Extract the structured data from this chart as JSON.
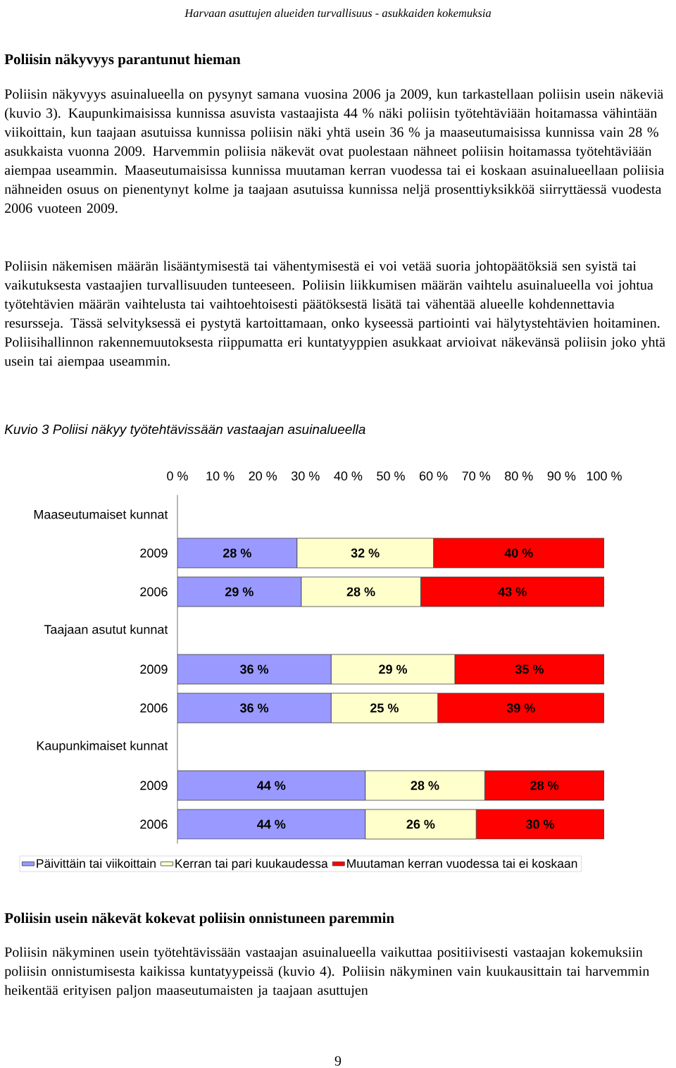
{
  "chart_data": {
    "type": "bar",
    "orientation": "horizontal",
    "stacked": true,
    "title": "Kuvio 3 Poliisi näkyy työtehtävissään vastaajan asuinalueella",
    "annotations": [
      "Harvaan asuttujen alueiden turvallisuus - asukkaiden kokemuksia",
      "Poliisin näkyvyys parantunut hieman",
      "Poliisin näkyvyys asuinalueella on pysynyt samana vuosina 2006 ja 2009, kun tarkastellaan poliisin usein näkeviä (kuvio 3). Kaupunkimaisissa kunnissa asuvista vastaajista 44 % näki poliisin työtehtäviään hoitamassa vähintään viikoittain, kun taajaan asutuissa kunnissa poliisin näki yhtä usein 36 % ja maaseutumaisissa kunnissa vain 28 % asukkaista vuonna 2009. Harvemmin poliisia näkevät ovat puolestaan nähneet poliisin hoitamassa työtehtäviään aiempaa useammin. Maaseutumaisissa kunnissa muutaman kerran vuodessa tai ei koskaan asuinalueellaan poliisia nähneiden osuus on pienentynyt kolme ja taajaan asutuissa kunnissa neljä prosenttiyksikköä siirryttäessä vuodesta 2006 vuoteen 2009.",
      "Poliisin näkemisen määrän lisääntymisestä tai vähentymisestä ei voi vetää suoria johtopäätöksiä sen syistä tai vaikutuksesta vastaajien turvallisuuden tunteeseen. Poliisin liikkumisen määrän vaihtelu asuinalueella voi johtua työtehtävien määrän vaihtelusta tai vaihtoehtoisesti päätöksestä lisätä tai vähentää alueelle kohdennettavia resursseja. Tässä selvityksessä ei pystytä kartoittamaan, onko kyseessä partiointi vai hälytystehtävien hoitaminen. Poliisihallinnon rakennemuutoksesta riippumatta eri kuntatyyppien asukkaat arvioivat näkevänsä poliisin joko yhtä usein tai aiempaa useammin.",
      "Poliisin usein näkevät kokevat poliisin onnistuneen paremmin",
      "Poliisin näkyminen usein työtehtävissään vastaajan asuinalueella vaikuttaa positiivisesti vastaajan kokemuksiin poliisin onnistumisesta kaikissa kuntatyypeissä (kuvio 4). Poliisin näkyminen vain kuukausittain tai harvemmin heikentää erityisen paljon maaseutumaisten ja taajaan asuttujen",
      "9"
    ],
    "categories": [
      "Maaseutumaiset kunnat",
      "2009",
      "2006",
      "Taajaan asutut kunnat",
      "2009",
      "2006",
      "Kaupunkimaiset kunnat",
      "2009",
      "2006"
    ],
    "series": [
      {
        "name": "Päivittäin tai viikoittain",
        "color": "#9999ff",
        "values": [
          null,
          28,
          29,
          null,
          36,
          36,
          null,
          44,
          44
        ],
        "value_labels": [
          null,
          "28 %",
          "29 %",
          null,
          "36 %",
          "36 %",
          null,
          "44 %",
          "44 %"
        ]
      },
      {
        "name": "Kerran tai pari kuukaudessa",
        "color": "#ffffcc",
        "values": [
          null,
          32,
          28,
          null,
          29,
          25,
          null,
          28,
          26
        ],
        "value_labels": [
          null,
          "32 %",
          "28 %",
          null,
          "29 %",
          "25 %",
          null,
          "28 %",
          "26 %"
        ]
      },
      {
        "name": "Muutaman kerran vuodessa tai ei koskaan",
        "color": "#ff0000",
        "values": [
          null,
          40,
          43,
          null,
          35,
          39,
          null,
          28,
          30
        ],
        "value_labels": [
          null,
          "40 %",
          "43 %",
          null,
          "35 %",
          "39 %",
          null,
          "28 %",
          "30 %"
        ]
      }
    ],
    "xlim": [
      0,
      100
    ],
    "xticks": [
      {
        "value": 0,
        "label": "0 %"
      },
      {
        "value": 10,
        "label": "10 %"
      },
      {
        "value": 20,
        "label": "20 %"
      },
      {
        "value": 30,
        "label": "30 %"
      },
      {
        "value": 40,
        "label": "40 %"
      },
      {
        "value": 50,
        "label": "50 %"
      },
      {
        "value": 60,
        "label": "60 %"
      },
      {
        "value": 70,
        "label": "70 %"
      },
      {
        "value": 80,
        "label": "80 %"
      },
      {
        "value": 90,
        "label": "90 %"
      },
      {
        "value": 100,
        "label": "100 %"
      }
    ],
    "legend": "bottom"
  }
}
